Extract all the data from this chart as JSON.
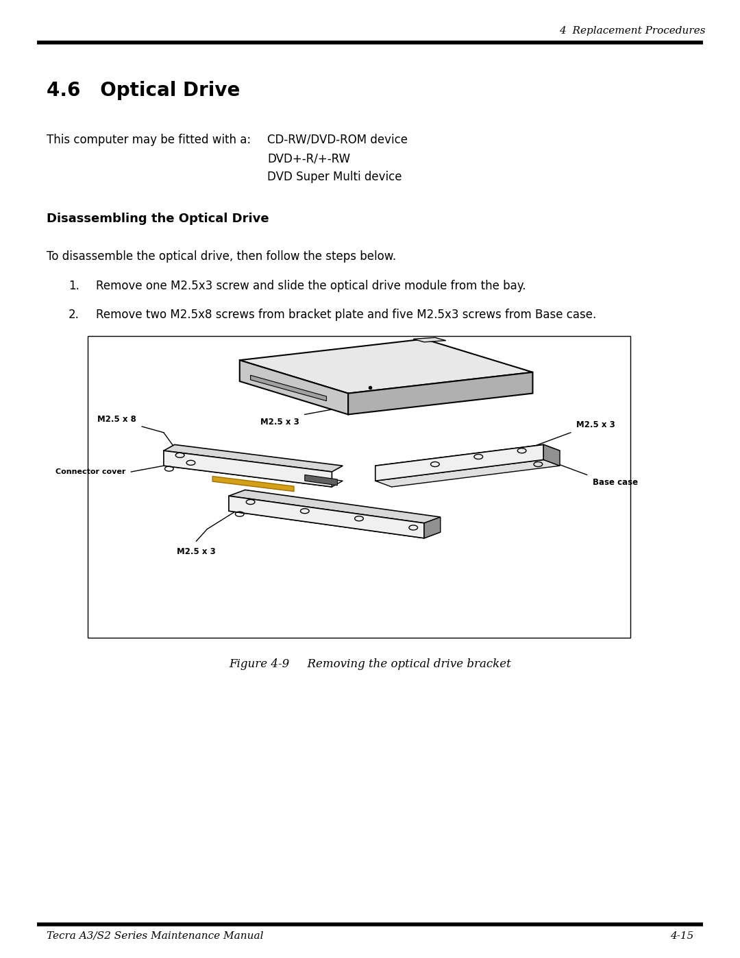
{
  "bg_color": "#ffffff",
  "header_text": "4  Replacement Procedures",
  "section_title": "4.6   Optical Drive",
  "intro_label": "This computer may be fitted with a:",
  "intro_items": [
    "CD-RW/DVD-ROM device",
    "DVD+-R/+-RW",
    "DVD Super Multi device"
  ],
  "subsection_title": "Disassembling the Optical Drive",
  "intro_para": "To disassemble the optical drive, then follow the steps below.",
  "step1": "Remove one M2.5x3 screw and slide the optical drive module from the bay.",
  "step2": "Remove two M2.5x8 screws from bracket plate and five M2.5x3 screws from Base case.",
  "figure_caption": "Figure 4-9     Removing the optical drive bracket",
  "footer_left": "Tecra A3/S2 Series Maintenance Manual",
  "footer_right": "4-15"
}
